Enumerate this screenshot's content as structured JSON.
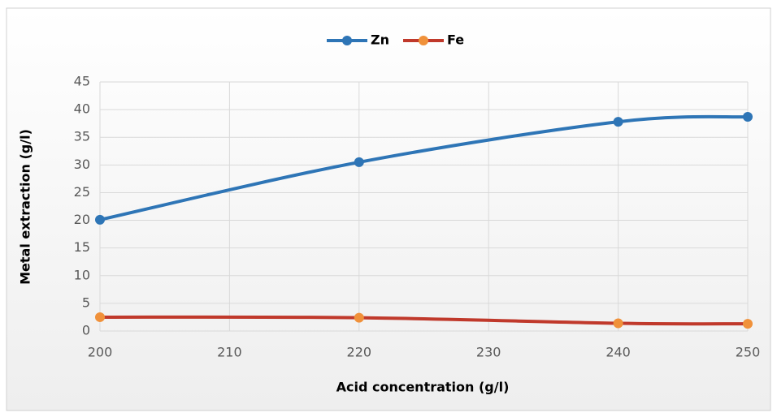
{
  "chart_data": {
    "type": "line",
    "xlabel": "Acid concentration (g/l)",
    "ylabel": "Metal extraction (g/l)",
    "x": [
      200,
      220,
      240,
      250
    ],
    "series": [
      {
        "name": "Zn",
        "color": "#2e75b6",
        "marker_color": "#2e75b6",
        "values": [
          20.1,
          30.5,
          37.8,
          38.7
        ]
      },
      {
        "name": "Fe",
        "color": "#c0392b",
        "marker_color": "#f0913a",
        "values": [
          2.5,
          2.4,
          1.4,
          1.3
        ]
      }
    ],
    "xlim": [
      200,
      250
    ],
    "xticks": [
      200,
      210,
      220,
      230,
      240,
      250
    ],
    "ylim": [
      0,
      45
    ],
    "yticks": [
      0,
      5,
      10,
      15,
      20,
      25,
      30,
      35,
      40,
      45
    ],
    "grid": true,
    "smooth": true,
    "legend": "top"
  }
}
